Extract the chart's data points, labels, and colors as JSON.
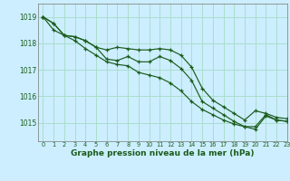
{
  "title": "Graphe pression niveau de la mer (hPa)",
  "background_color": "#cceeff",
  "grid_color": "#aaddcc",
  "line_color": "#1a5c1a",
  "xlim": [
    -0.5,
    23
  ],
  "ylim": [
    1014.3,
    1019.5
  ],
  "yticks": [
    1015,
    1016,
    1017,
    1018,
    1019
  ],
  "xticks": [
    0,
    1,
    2,
    3,
    4,
    5,
    6,
    7,
    8,
    9,
    10,
    11,
    12,
    13,
    14,
    15,
    16,
    17,
    18,
    19,
    20,
    21,
    22,
    23
  ],
  "series": [
    [
      1019.0,
      1018.75,
      1018.3,
      1018.25,
      1018.1,
      1017.85,
      1017.75,
      1017.85,
      1017.8,
      1017.75,
      1017.75,
      1017.8,
      1017.75,
      1017.55,
      1017.1,
      1016.3,
      1015.85,
      1015.6,
      1015.35,
      1015.1,
      1015.45,
      1015.35,
      1015.2,
      1015.15
    ],
    [
      1019.0,
      1018.75,
      1018.3,
      1018.25,
      1018.1,
      1017.85,
      1017.4,
      1017.35,
      1017.5,
      1017.3,
      1017.3,
      1017.5,
      1017.35,
      1017.05,
      1016.6,
      1015.8,
      1015.55,
      1015.3,
      1015.05,
      1014.85,
      1014.85,
      1015.3,
      1015.1,
      1015.05
    ],
    [
      1019.0,
      1018.5,
      1018.3,
      1018.1,
      1017.8,
      1017.55,
      1017.3,
      1017.2,
      1017.15,
      1016.9,
      1016.8,
      1016.7,
      1016.5,
      1016.2,
      1015.8,
      1015.5,
      1015.3,
      1015.1,
      1014.95,
      1014.85,
      1014.75,
      1015.25,
      1015.1,
      1015.05
    ]
  ]
}
